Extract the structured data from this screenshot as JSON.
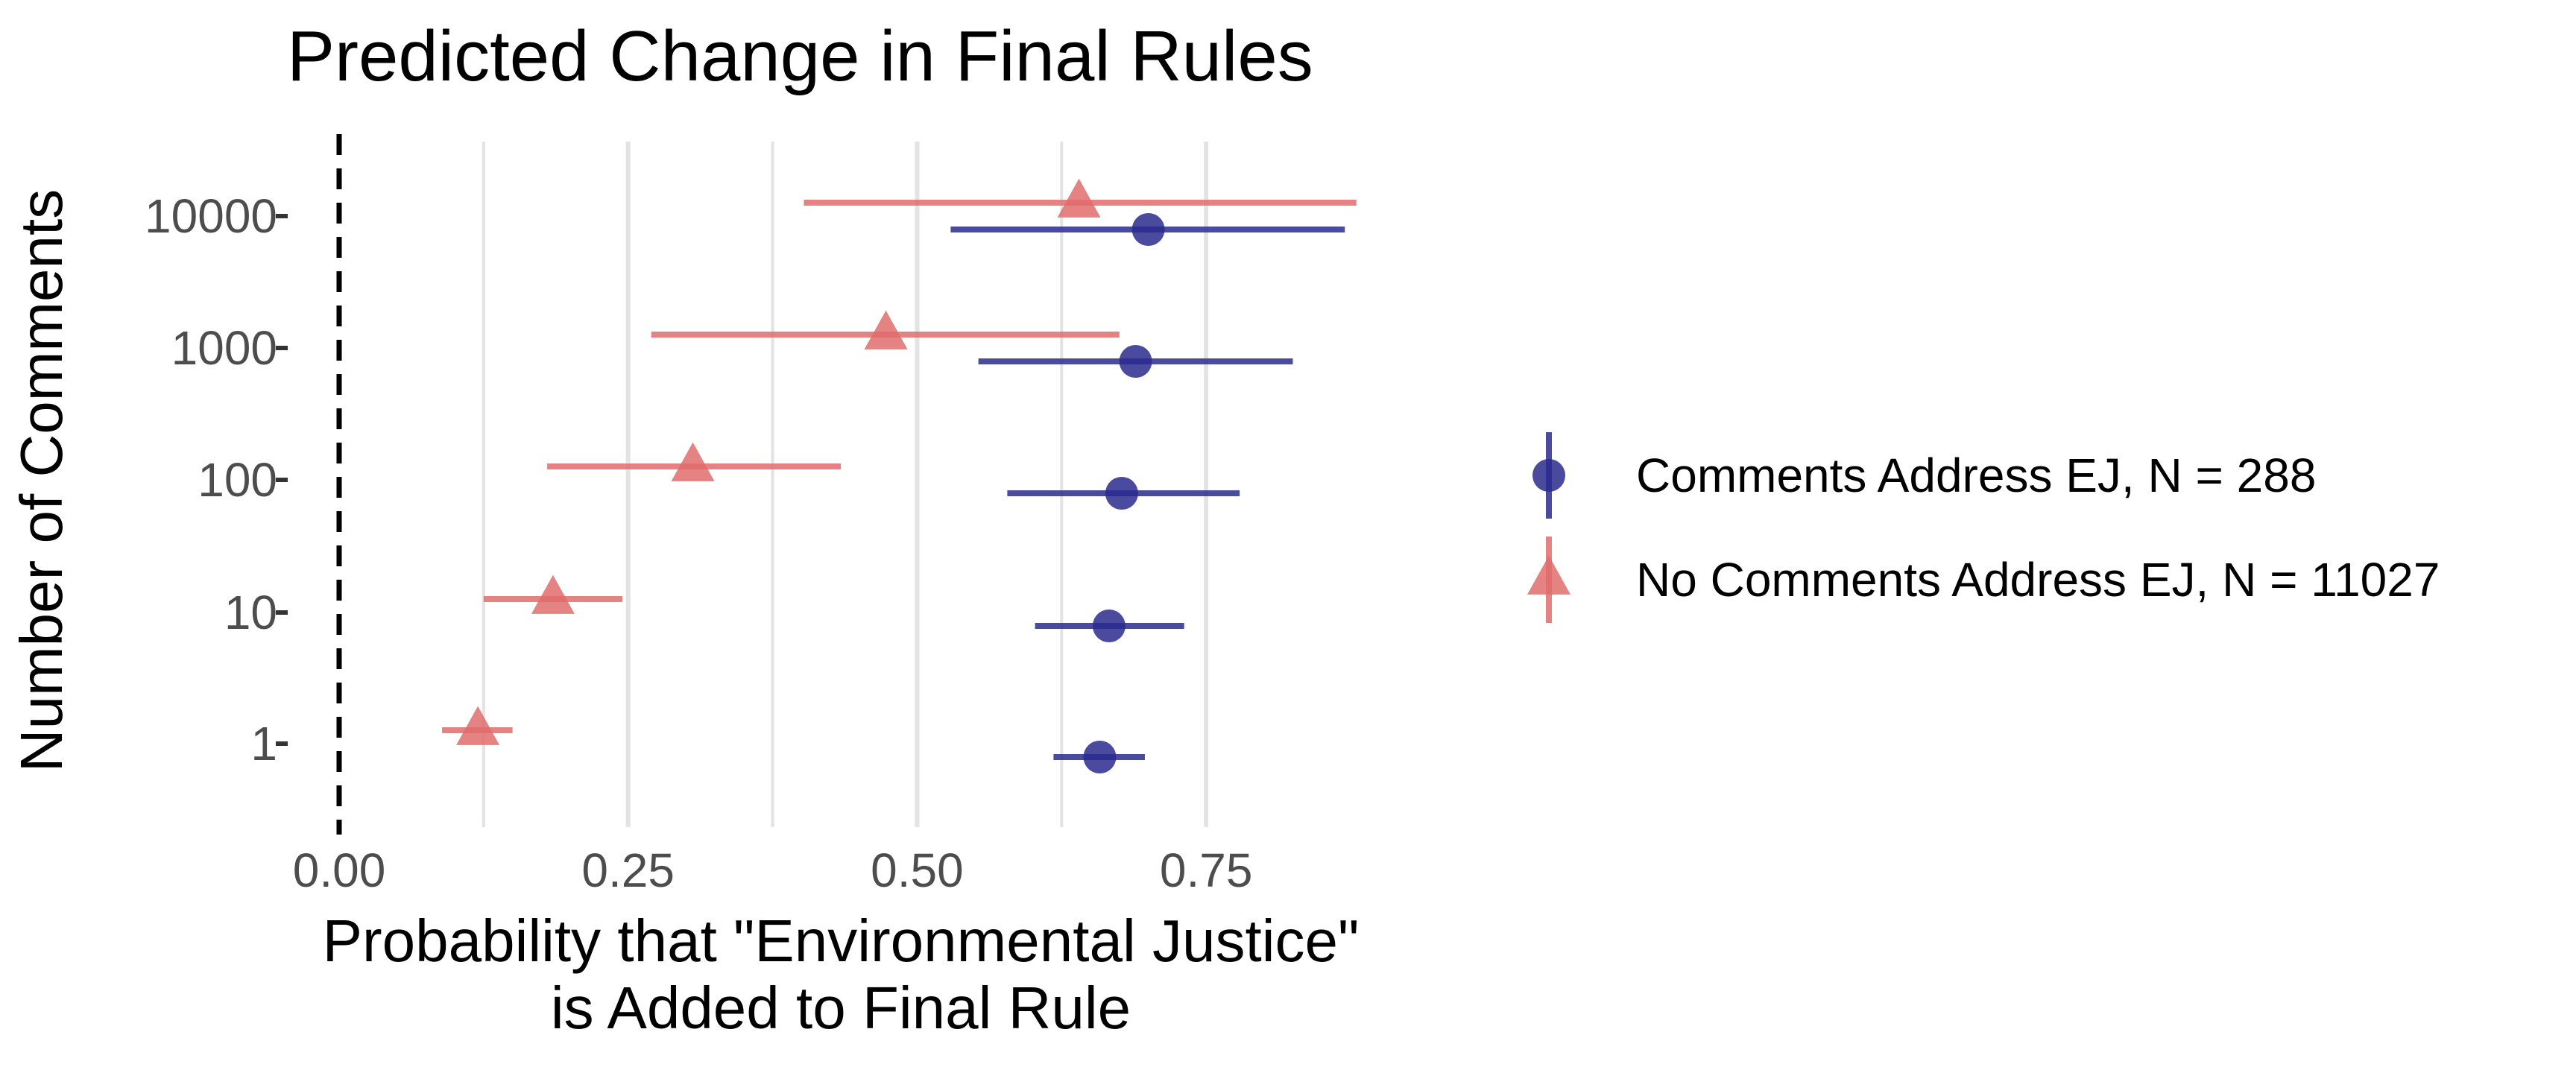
{
  "chart_data": {
    "type": "scatter",
    "title": "Predicted Change in Final Rules",
    "xlabel_lines": [
      "Probability that \"Environmental Justice\"",
      "is Added to Final Rule"
    ],
    "ylabel": "Number of Comments",
    "categories": [
      "1",
      "10",
      "100",
      "1000",
      "10000"
    ],
    "xlim": [
      0,
      0.875
    ],
    "xticks": [
      {
        "value": 0.0,
        "label": "0.00"
      },
      {
        "value": 0.25,
        "label": "0.25"
      },
      {
        "value": 0.5,
        "label": "0.50"
      },
      {
        "value": 0.75,
        "label": "0.75"
      }
    ],
    "reference_line": {
      "x": 0,
      "style": "dashed"
    },
    "grid": "vertical",
    "legend_position": "right",
    "series": [
      {
        "name": "Comments Address EJ, N = 288",
        "color": "#2a2a8e",
        "marker": "circle",
        "points": [
          {
            "category": "1",
            "estimate": 0.658,
            "lower": 0.618,
            "upper": 0.697
          },
          {
            "category": "10",
            "estimate": 0.666,
            "lower": 0.602,
            "upper": 0.731
          },
          {
            "category": "100",
            "estimate": 0.677,
            "lower": 0.578,
            "upper": 0.779
          },
          {
            "category": "1000",
            "estimate": 0.689,
            "lower": 0.553,
            "upper": 0.825
          },
          {
            "category": "10000",
            "estimate": 0.7,
            "lower": 0.529,
            "upper": 0.87
          }
        ]
      },
      {
        "name": "No Comments Address EJ, N = 11027",
        "color": "#e06c6c",
        "marker": "triangle",
        "points": [
          {
            "category": "1",
            "estimate": 0.12,
            "lower": 0.089,
            "upper": 0.15
          },
          {
            "category": "10",
            "estimate": 0.185,
            "lower": 0.125,
            "upper": 0.245
          },
          {
            "category": "100",
            "estimate": 0.306,
            "lower": 0.18,
            "upper": 0.434
          },
          {
            "category": "1000",
            "estimate": 0.473,
            "lower": 0.27,
            "upper": 0.675
          },
          {
            "category": "10000",
            "estimate": 0.64,
            "lower": 0.402,
            "upper": 0.88
          }
        ]
      }
    ]
  }
}
